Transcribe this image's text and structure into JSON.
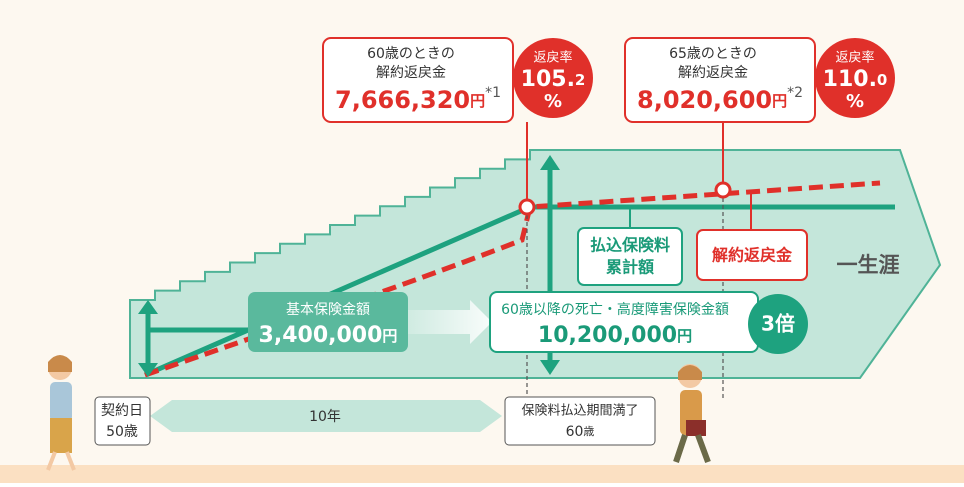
{
  "callouts": [
    {
      "line1": "60歳のときの",
      "line2": "解約返戻金",
      "amount": "7,666,320",
      "unit": "円",
      "note": "*1",
      "rate_label": "返戻率",
      "rate_main": "105.",
      "rate_decimal": "2",
      "rate_unit": "%"
    },
    {
      "line1": "65歳のときの",
      "line2": "解約返戻金",
      "amount": "8,020,600",
      "unit": "円",
      "note": "*2",
      "rate_label": "返戻率",
      "rate_main": "110.",
      "rate_decimal": "0",
      "rate_unit": "%"
    }
  ],
  "labels": {
    "paid_total": [
      "払込保険料",
      "累計額"
    ],
    "surrender": "解約返戻金",
    "lifetime": "一生涯"
  },
  "basic": {
    "title": "基本保険金額",
    "amount": "3,400,000",
    "unit": "円"
  },
  "death": {
    "title": "60歳以降の死亡・高度障害保険金額",
    "amount": "10,200,000",
    "unit": "円",
    "multiple": "3倍"
  },
  "timeline": {
    "start": [
      "契約日",
      "50歳"
    ],
    "period": "10年",
    "end_title": "保険料払込期間満了",
    "end_age": "60",
    "end_age_unit": "歳"
  }
}
